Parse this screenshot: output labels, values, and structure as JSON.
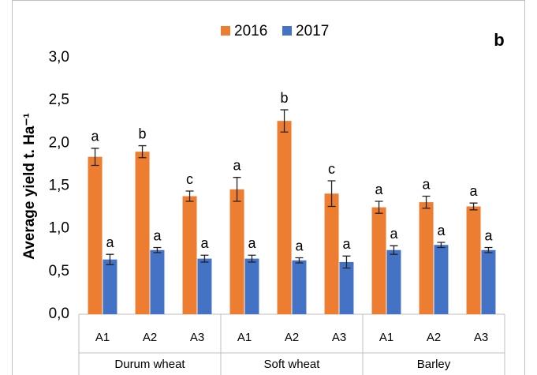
{
  "chart_data": {
    "type": "bar",
    "panel_label": "b",
    "y_label": "Average yield t. Ha⁻¹",
    "categories": [
      "A1",
      "A2",
      "A3",
      "A1",
      "A2",
      "A3",
      "A1",
      "A2",
      "A3"
    ],
    "groups": [
      "Durum wheat",
      "Soft wheat",
      "Barley"
    ],
    "series": [
      {
        "name": "2016",
        "color": "#ed7d31",
        "values": [
          1.84,
          1.9,
          1.38,
          1.46,
          2.26,
          1.41,
          1.25,
          1.31,
          1.26
        ],
        "errors": [
          0.1,
          0.07,
          0.06,
          0.14,
          0.13,
          0.15,
          0.07,
          0.07,
          0.04
        ],
        "letters": [
          "a",
          "b",
          "c",
          "a",
          "b",
          "c",
          "a",
          "a",
          "a"
        ]
      },
      {
        "name": "2017",
        "color": "#4472c4",
        "values": [
          0.64,
          0.75,
          0.65,
          0.65,
          0.63,
          0.61,
          0.75,
          0.81,
          0.75
        ],
        "errors": [
          0.06,
          0.03,
          0.04,
          0.04,
          0.03,
          0.07,
          0.05,
          0.03,
          0.03
        ],
        "letters": [
          "a",
          "a",
          "a",
          "a",
          "a",
          "a",
          "a",
          "a",
          "a"
        ]
      }
    ],
    "ylim": [
      0,
      3
    ],
    "yticks": [
      {
        "value": 0,
        "label": "0,0"
      },
      {
        "value": 0.5,
        "label": "0,5"
      },
      {
        "value": 1,
        "label": "1,0"
      },
      {
        "value": 1.5,
        "label": "1,5"
      },
      {
        "value": 2,
        "label": "2,0"
      },
      {
        "value": 2.5,
        "label": "2,5"
      },
      {
        "value": 3,
        "label": "3,0"
      }
    ],
    "grid": false,
    "legend": "top"
  }
}
